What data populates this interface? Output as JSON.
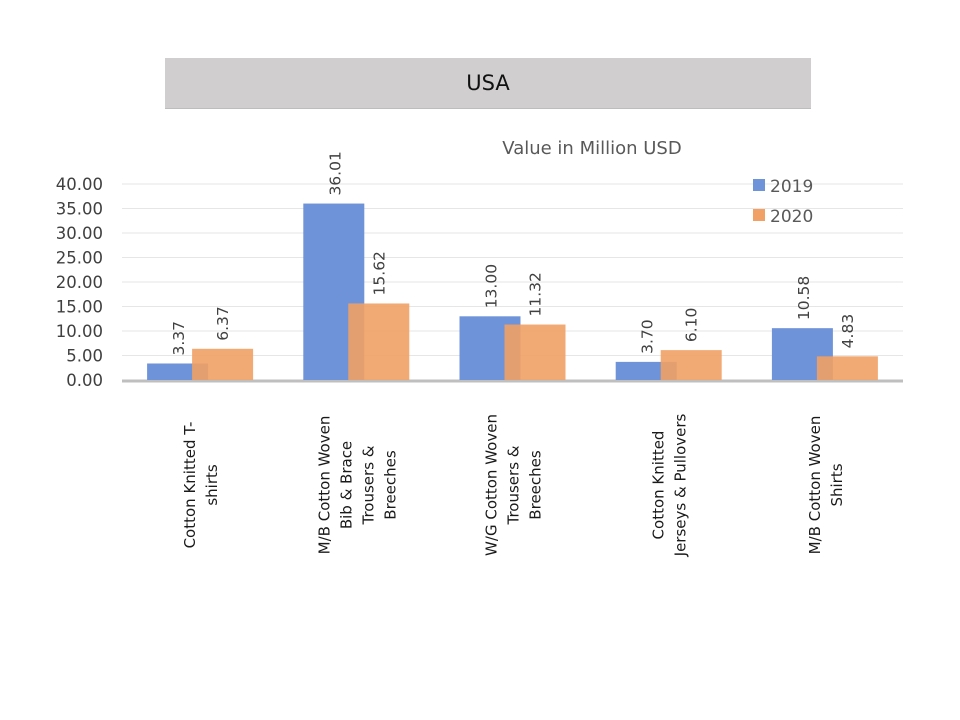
{
  "chart_data": {
    "type": "bar",
    "title": "USA",
    "subtitle": "Value in Million USD",
    "xlabel": "",
    "ylabel": "",
    "ylim": [
      0,
      40
    ],
    "yticks": [
      "0.00",
      "5.00",
      "10.00",
      "15.00",
      "20.00",
      "25.00",
      "30.00",
      "35.00",
      "40.00"
    ],
    "grid": true,
    "legend_position": "top-right",
    "categories": [
      [
        "Cotton Knitted  T-",
        "shirts"
      ],
      [
        "M/B Cotton  Woven",
        "Bib & Brace",
        "Trousers &",
        "Breeches"
      ],
      [
        "W/G Cotton  Woven",
        "Trousers &",
        "Breeches"
      ],
      [
        "Cotton  Knitted",
        "Jerseys & Pullovers"
      ],
      [
        "M/B Cotton  Woven",
        "Shirts"
      ]
    ],
    "series": [
      {
        "name": "2019",
        "color": "#6f93d8",
        "values": [
          3.37,
          36.01,
          13.0,
          3.7,
          10.58
        ],
        "labels": [
          "3.37",
          "36.01",
          "13.00",
          "3.70",
          "10.58"
        ]
      },
      {
        "name": "2020",
        "color": "#f1a165",
        "values": [
          6.37,
          15.62,
          11.32,
          6.1,
          4.83
        ],
        "labels": [
          "6.37",
          "15.62",
          "11.32",
          "6.10",
          "4.83"
        ]
      }
    ]
  }
}
